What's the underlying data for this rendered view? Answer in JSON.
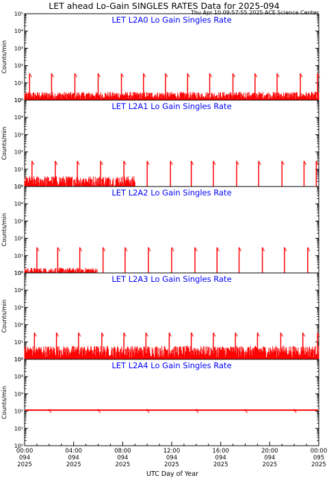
{
  "header": {
    "title": "LET ahead Lo-Gain SINGLES RATES Data for 2025-094",
    "timestamp": "Thu Apr 10 09:57:55 2025 ACE Science Center"
  },
  "colors": {
    "trace": "#ff0000",
    "panel_title": "#0000ff",
    "axes": "#000000"
  },
  "chart_data": {
    "type": "line",
    "xlabel": "UTC Day of Year",
    "x_range_hours": [
      0,
      24
    ],
    "x_ticks": [
      {
        "hour": 0,
        "time": "00:00",
        "doy": "094",
        "year": "2025"
      },
      {
        "hour": 4,
        "time": "04:00",
        "doy": "094",
        "year": "2025"
      },
      {
        "hour": 8,
        "time": "08:00",
        "doy": "094",
        "year": "2025"
      },
      {
        "hour": 12,
        "time": "12:00",
        "doy": "094",
        "year": "2025"
      },
      {
        "hour": 16,
        "time": "16:00",
        "doy": "094",
        "year": "2025"
      },
      {
        "hour": 20,
        "time": "20:00",
        "doy": "094",
        "year": "2025"
      },
      {
        "hour": 24,
        "time": "00:00",
        "doy": "095",
        "year": "2025"
      }
    ],
    "ylabel": "Counts/min",
    "y_scale": "log",
    "y_range": [
      1,
      100000
    ],
    "y_tick_labels": [
      "10⁰",
      "10¹",
      "10²",
      "10³",
      "10⁴",
      "10⁵"
    ],
    "panels": [
      {
        "title": "LET L2A0 Lo Gain Singles Rate",
        "baseline": 1.2,
        "noise_max": 3,
        "noise_until_hour": 24,
        "spike_peak": 35,
        "spike_floor": 2,
        "spike_hours": [
          0.4,
          2.2,
          4.1,
          6.0,
          7.9,
          9.7,
          11.5,
          13.3,
          15.1,
          17.0,
          18.8,
          20.6,
          22.5,
          23.9
        ]
      },
      {
        "title": "LET L2A1 Lo Gain Singles Rate",
        "baseline": 1.0,
        "noise_max": 4,
        "noise_until_hour": 9,
        "spike_peak": 30,
        "spike_floor": 1,
        "spike_hours": [
          0.6,
          2.5,
          4.3,
          6.2,
          8.1,
          10.0,
          11.9,
          13.6,
          15.4,
          17.3,
          19.1,
          21.0,
          22.8,
          23.8
        ]
      },
      {
        "title": "LET L2A2 Lo Gain Singles Rate",
        "baseline": 1.0,
        "noise_max": 2,
        "noise_until_hour": 6,
        "spike_peak": 30,
        "spike_floor": 1,
        "spike_hours": [
          1.0,
          2.7,
          4.5,
          6.4,
          8.2,
          10.1,
          12.0,
          13.9,
          15.7,
          17.5,
          19.4,
          21.2,
          23.1
        ]
      },
      {
        "title": "LET L2A3 Lo Gain Singles Rate",
        "baseline": 1.3,
        "noise_max": 6,
        "noise_until_hour": 24,
        "spike_peak": 35,
        "spike_floor": 2,
        "spike_hours": [
          0.8,
          2.6,
          4.4,
          6.3,
          8.1,
          9.9,
          11.8,
          13.6,
          15.4,
          17.2,
          19.0,
          20.9,
          22.7,
          23.9
        ]
      },
      {
        "title": "LET L2A4 Lo Gain Singles Rate",
        "baseline": 115,
        "noise_max": 0,
        "noise_until_hour": 24,
        "spike_peak": 130,
        "spike_floor": 100,
        "spike_hours": [
          2.0,
          6.0,
          10.0,
          14.0,
          18.0,
          22.0
        ]
      }
    ]
  }
}
